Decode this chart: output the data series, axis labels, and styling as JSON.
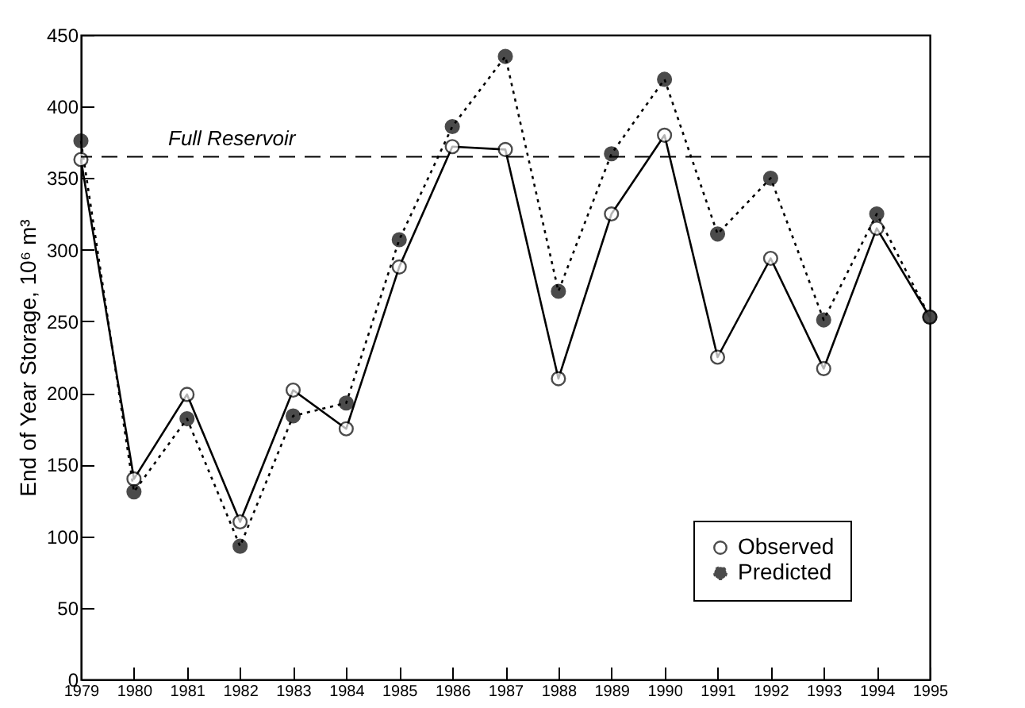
{
  "chart_data": {
    "type": "line",
    "x": [
      1979,
      1980,
      1981,
      1982,
      1983,
      1984,
      1985,
      1986,
      1987,
      1988,
      1989,
      1990,
      1991,
      1992,
      1993,
      1994,
      1995
    ],
    "series": [
      {
        "name": "Observed",
        "color": "#000000",
        "line_style": "solid",
        "values": [
          363,
          140,
          199,
          110,
          202,
          175,
          288,
          372,
          370,
          210,
          325,
          380,
          225,
          294,
          217,
          315,
          253
        ]
      },
      {
        "name": "Predicted",
        "color": "#000000",
        "line_style": "dotted",
        "values": [
          376,
          131,
          182,
          93,
          184,
          193,
          307,
          386,
          435,
          271,
          367,
          419,
          311,
          350,
          251,
          325,
          253
        ]
      }
    ],
    "ylabel": "End of Year Storage, 10⁶ m³",
    "xlim": [
      1979,
      1995
    ],
    "xticks": [
      1979,
      1980,
      1981,
      1982,
      1983,
      1984,
      1985,
      1986,
      1987,
      1988,
      1989,
      1990,
      1991,
      1992,
      1993,
      1994,
      1995
    ],
    "ylim": [
      0,
      450
    ],
    "yticks": [
      0,
      50,
      100,
      150,
      200,
      250,
      300,
      350,
      400,
      450
    ],
    "ref_lines": [
      {
        "axis": "y",
        "value": 365,
        "label": "Full Reservoir",
        "line_style": "dashed"
      }
    ],
    "grid": false,
    "legend": "bottom right",
    "marker": "circle"
  }
}
